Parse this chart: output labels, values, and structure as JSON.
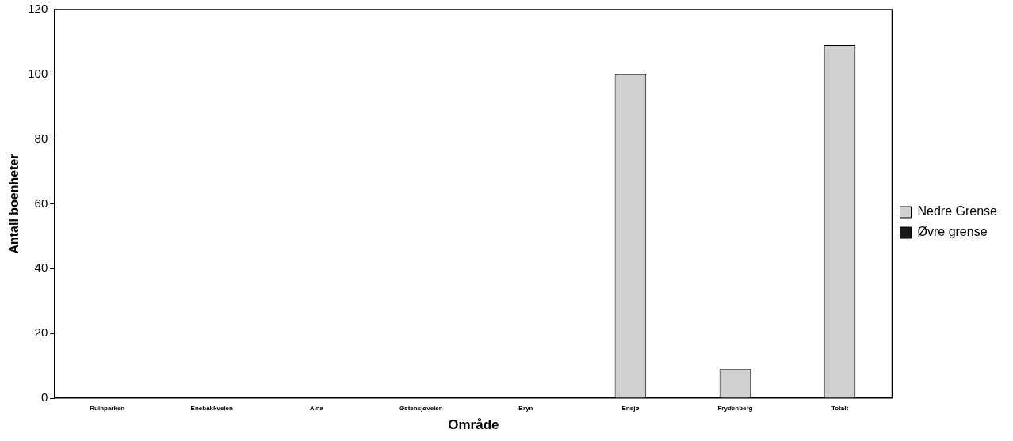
{
  "chart_data": {
    "type": "bar",
    "xlabel": "Område",
    "ylabel": "Antall boenheter",
    "categories": [
      "Ruinparken",
      "Enebakkveien",
      "Alna",
      "Østensjøveien",
      "Bryn",
      "Ensjø",
      "Frydenberg",
      "Totalt"
    ],
    "series": [
      {
        "name": "Nedre Grense",
        "color": "#d0d0d0",
        "values": [
          0,
          0,
          0,
          0,
          0,
          100,
          9,
          109
        ]
      },
      {
        "name": "Øvre grense",
        "color": "#1a1a1a",
        "values": [
          null,
          null,
          null,
          null,
          null,
          null,
          null,
          null
        ]
      }
    ],
    "ylim": [
      0,
      120
    ],
    "yticks": [
      0,
      20,
      40,
      60,
      80,
      100,
      120
    ],
    "grid": false,
    "legend": "right"
  }
}
